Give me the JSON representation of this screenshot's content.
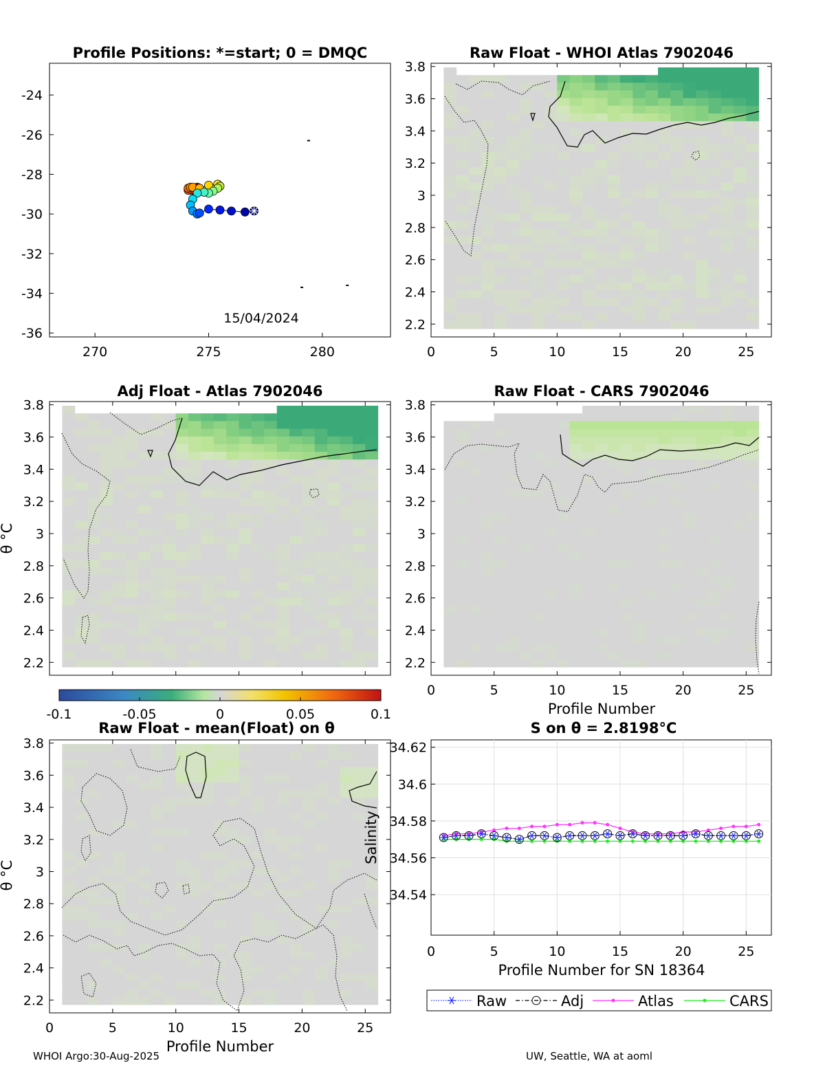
{
  "footer": {
    "left": "WHOI Argo:30-Aug-2025",
    "right": "UW, Seattle, WA at aoml"
  },
  "colors": {
    "heat_mid": "#d6d6d6",
    "raw": "#2030ff",
    "adj": "#000000",
    "atlas": "#ff33ff",
    "cars": "#22ee22"
  },
  "chart_data": [
    {
      "id": "positions",
      "type": "scatter",
      "title": "Profile Positions: *=start; 0 = DMQC",
      "xlim": [
        268,
        283
      ],
      "ylim": [
        -36.2,
        -22.4
      ],
      "xticks": [
        270,
        275,
        280
      ],
      "yticks": [
        -24,
        -26,
        -28,
        -30,
        -32,
        -34,
        -36
      ],
      "date_label": "15/04/2024",
      "lon": [
        277.0,
        276.6,
        276.0,
        275.5,
        275.0,
        274.6,
        274.5,
        274.3,
        274.2,
        274.3,
        274.5,
        274.8,
        275.0,
        275.2,
        275.4,
        275.5,
        275.4,
        275.0,
        274.6,
        274.3,
        274.2,
        274.1,
        274.1,
        274.2,
        274.3,
        274.5
      ],
      "lat": [
        -29.85,
        -29.9,
        -29.85,
        -29.8,
        -29.75,
        -29.95,
        -30.0,
        -29.85,
        -29.55,
        -29.25,
        -28.95,
        -28.9,
        -28.95,
        -28.85,
        -28.7,
        -28.6,
        -28.5,
        -28.55,
        -28.7,
        -28.65,
        -28.65,
        -28.7,
        -28.8,
        -28.8,
        -28.8,
        -28.65
      ],
      "land_specks": [
        [
          279.4,
          -26.3
        ],
        [
          279.1,
          -33.7
        ],
        [
          281.1,
          -33.6
        ]
      ]
    },
    {
      "id": "raw_whoi",
      "type": "heatmap",
      "title": "Raw Float - WHOI Atlas  7902046",
      "xlim": [
        0,
        27
      ],
      "ylim": [
        2.12,
        3.82
      ],
      "xticks": [
        0,
        5,
        10,
        15,
        20,
        25
      ],
      "yticks": [
        "2.2",
        "2.4",
        "2.6",
        "2.8",
        "3",
        "3.2",
        "3.4",
        "3.6",
        "3.8"
      ]
    },
    {
      "id": "adj_atlas",
      "type": "heatmap",
      "title": "Adj Float - Atlas  7902046",
      "xlim": [
        0,
        27
      ],
      "ylim": [
        2.12,
        3.82
      ],
      "ylabel": "θ °C",
      "yticks": [
        "2.2",
        "2.4",
        "2.6",
        "2.8",
        "3",
        "3.2",
        "3.4",
        "3.6",
        "3.8"
      ]
    },
    {
      "id": "raw_cars",
      "type": "heatmap",
      "title": "Raw Float - CARS  7902046",
      "xlim": [
        0,
        27
      ],
      "ylim": [
        2.12,
        3.82
      ],
      "xlabel": "Profile Number",
      "xticks": [
        0,
        5,
        10,
        15,
        20,
        25
      ],
      "yticks": [
        "2.2",
        "2.4",
        "2.6",
        "2.8",
        "3",
        "3.2",
        "3.4",
        "3.6",
        "3.8"
      ]
    },
    {
      "id": "colorbar",
      "type": "colorbar",
      "range": [
        -0.1,
        0.1
      ],
      "ticks": [
        "-0.1",
        "-0.05",
        "0",
        "0.05",
        "0.1"
      ]
    },
    {
      "id": "raw_mean",
      "type": "heatmap",
      "title": "Raw Float - mean(Float) on θ",
      "xlim": [
        0,
        27
      ],
      "ylim": [
        2.12,
        3.82
      ],
      "xlabel": "Profile Number",
      "ylabel": "θ °C",
      "xticks": [
        0,
        5,
        10,
        15,
        20,
        25
      ],
      "yticks": [
        "2.2",
        "2.4",
        "2.6",
        "2.8",
        "3",
        "3.2",
        "3.4",
        "3.6",
        "3.8"
      ]
    },
    {
      "id": "salinity",
      "type": "line",
      "title": "S on θ = 2.8198°C",
      "xlabel": "Profile Number for SN 18364",
      "ylabel": "Salinity",
      "xlim": [
        0,
        27
      ],
      "ylim": [
        34.518,
        34.624
      ],
      "xticks": [
        0,
        5,
        10,
        15,
        20,
        25
      ],
      "yticks": [
        "34.54",
        "34.56",
        "34.58",
        "34.6",
        "34.62"
      ],
      "x": [
        1,
        2,
        3,
        4,
        5,
        6,
        7,
        8,
        9,
        10,
        11,
        12,
        13,
        14,
        15,
        16,
        17,
        18,
        19,
        20,
        21,
        22,
        23,
        24,
        25,
        26
      ],
      "series": [
        {
          "name": "Raw",
          "values": [
            34.571,
            34.572,
            34.572,
            34.573,
            34.572,
            34.571,
            34.57,
            34.572,
            34.572,
            34.571,
            34.572,
            34.572,
            34.572,
            34.573,
            34.572,
            34.573,
            34.572,
            34.572,
            34.572,
            34.572,
            34.573,
            34.572,
            34.572,
            34.572,
            34.572,
            34.573
          ]
        },
        {
          "name": "Adj",
          "values": [
            34.571,
            34.572,
            34.572,
            34.573,
            34.572,
            34.571,
            34.57,
            34.572,
            34.572,
            34.571,
            34.572,
            34.572,
            34.572,
            34.573,
            34.572,
            34.573,
            34.572,
            34.572,
            34.572,
            34.572,
            34.573,
            34.572,
            34.572,
            34.572,
            34.572,
            34.573
          ]
        },
        {
          "name": "Atlas",
          "values": [
            34.572,
            34.573,
            34.573,
            34.574,
            34.575,
            34.576,
            34.576,
            34.577,
            34.577,
            34.578,
            34.578,
            34.579,
            34.579,
            34.578,
            34.576,
            34.574,
            34.573,
            34.573,
            34.573,
            34.574,
            34.574,
            34.575,
            34.576,
            34.577,
            34.577,
            34.578
          ]
        },
        {
          "name": "CARS",
          "values": [
            34.57,
            34.57,
            34.57,
            34.57,
            34.57,
            34.569,
            34.569,
            34.569,
            34.569,
            34.569,
            34.569,
            34.569,
            34.569,
            34.569,
            34.569,
            34.569,
            34.569,
            34.569,
            34.569,
            34.569,
            34.569,
            34.569,
            34.569,
            34.569,
            34.569,
            34.569
          ]
        }
      ],
      "legend": [
        "Raw",
        "Adj",
        "Atlas",
        "CARS"
      ]
    }
  ]
}
